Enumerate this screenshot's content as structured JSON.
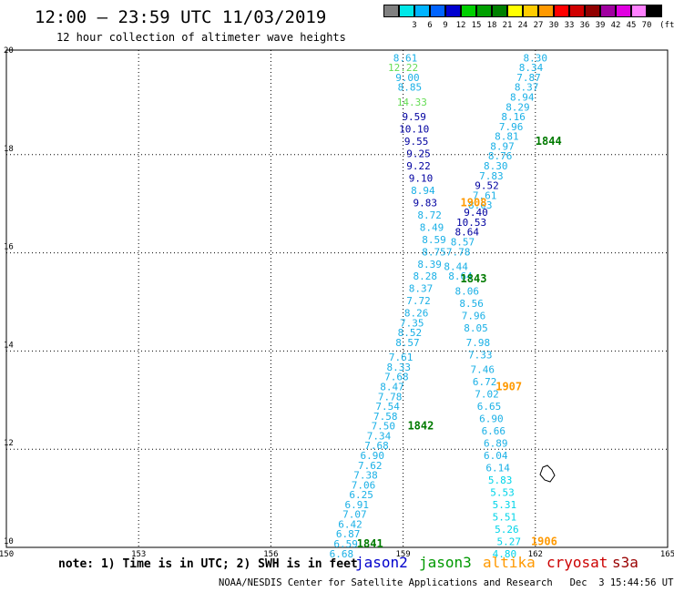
{
  "header": {
    "title": "12:00 — 23:59 UTC 11/03/2019",
    "subtitle": "12 hour collection of altimeter wave heights"
  },
  "legend": {
    "unit": "(ft)",
    "items": [
      {
        "color": "#808080",
        "label": ""
      },
      {
        "color": "#00e8e8",
        "label": "3"
      },
      {
        "color": "#00b4ff",
        "label": "6"
      },
      {
        "color": "#0064ff",
        "label": "9"
      },
      {
        "color": "#0000d0",
        "label": "12"
      },
      {
        "color": "#00d000",
        "label": "15"
      },
      {
        "color": "#00a000",
        "label": "18"
      },
      {
        "color": "#008000",
        "label": "21"
      },
      {
        "color": "#ffff00",
        "label": "24"
      },
      {
        "color": "#ffcc00",
        "label": "27"
      },
      {
        "color": "#ff9900",
        "label": "30"
      },
      {
        "color": "#ff0000",
        "label": "33"
      },
      {
        "color": "#d00000",
        "label": "36"
      },
      {
        "color": "#900000",
        "label": "39"
      },
      {
        "color": "#a000a0",
        "label": "42"
      },
      {
        "color": "#e000e0",
        "label": "45"
      },
      {
        "color": "#ff80ff",
        "label": "70"
      },
      {
        "color": "#000000",
        "label": ""
      }
    ]
  },
  "map": {
    "lon_ticks": [
      "150",
      "153",
      "156",
      "159",
      "162",
      "165"
    ],
    "lat_ticks": [
      "10",
      "12",
      "14",
      "16",
      "18",
      "20"
    ],
    "lon_range": [
      150,
      165
    ],
    "lat_range": [
      10,
      20
    ],
    "grid": "dotted",
    "colors": {
      "light_blue": "#1ab0e6",
      "dark_blue": "#0000a0",
      "light_green": "#66dd55",
      "dark_green": "#007a00",
      "orange": "#ff9900",
      "cyan": "#00d4e8"
    },
    "pass_labels": [
      {
        "text": "1844",
        "lon": 162.0,
        "lat": 18.2,
        "color": "dark_green"
      },
      {
        "text": "1908",
        "lon": 160.3,
        "lat": 16.95,
        "color": "orange"
      },
      {
        "text": "1843",
        "lon": 160.3,
        "lat": 15.4,
        "color": "dark_green"
      },
      {
        "text": "1907",
        "lon": 161.1,
        "lat": 13.2,
        "color": "orange"
      },
      {
        "text": "1842",
        "lon": 159.1,
        "lat": 12.4,
        "color": "dark_green"
      },
      {
        "text": "1841",
        "lon": 157.95,
        "lat": 10.0,
        "color": "dark_green"
      },
      {
        "text": "1906",
        "lon": 161.9,
        "lat": 10.05,
        "color": "orange"
      }
    ],
    "points": [
      {
        "t": "8.61",
        "lon": 159.05,
        "lat": 19.9,
        "c": "light_blue"
      },
      {
        "t": "12.22",
        "lon": 159.0,
        "lat": 19.7,
        "c": "light_green"
      },
      {
        "t": "9.00",
        "lon": 159.1,
        "lat": 19.5,
        "c": "light_blue"
      },
      {
        "t": "8.85",
        "lon": 159.15,
        "lat": 19.3,
        "c": "light_blue"
      },
      {
        "t": "14.33",
        "lon": 159.2,
        "lat": 19.0,
        "c": "light_green"
      },
      {
        "t": "9.59",
        "lon": 159.25,
        "lat": 18.7,
        "c": "dark_blue"
      },
      {
        "t": "10.10",
        "lon": 159.25,
        "lat": 18.45,
        "c": "dark_blue"
      },
      {
        "t": "9.55",
        "lon": 159.3,
        "lat": 18.2,
        "c": "dark_blue"
      },
      {
        "t": "9.25",
        "lon": 159.35,
        "lat": 17.95,
        "c": "dark_blue"
      },
      {
        "t": "9.22",
        "lon": 159.35,
        "lat": 17.7,
        "c": "dark_blue"
      },
      {
        "t": "9.10",
        "lon": 159.4,
        "lat": 17.45,
        "c": "dark_blue"
      },
      {
        "t": "8.94",
        "lon": 159.45,
        "lat": 17.2,
        "c": "light_blue"
      },
      {
        "t": "9.83",
        "lon": 159.5,
        "lat": 16.95,
        "c": "dark_blue"
      },
      {
        "t": "8.72",
        "lon": 159.6,
        "lat": 16.7,
        "c": "light_blue"
      },
      {
        "t": "8.49",
        "lon": 159.65,
        "lat": 16.45,
        "c": "light_blue"
      },
      {
        "t": "8.59",
        "lon": 159.7,
        "lat": 16.2,
        "c": "light_blue"
      },
      {
        "t": "8.75",
        "lon": 159.7,
        "lat": 15.95,
        "c": "light_blue"
      },
      {
        "t": "8.39",
        "lon": 159.6,
        "lat": 15.7,
        "c": "light_blue"
      },
      {
        "t": "8.28",
        "lon": 159.5,
        "lat": 15.45,
        "c": "light_blue"
      },
      {
        "t": "8.37",
        "lon": 159.4,
        "lat": 15.2,
        "c": "light_blue"
      },
      {
        "t": "7.72",
        "lon": 159.35,
        "lat": 14.95,
        "c": "light_blue"
      },
      {
        "t": "8.26",
        "lon": 159.3,
        "lat": 14.7,
        "c": "light_blue"
      },
      {
        "t": "7.35",
        "lon": 159.2,
        "lat": 14.5,
        "c": "light_blue"
      },
      {
        "t": "8.52",
        "lon": 159.15,
        "lat": 14.3,
        "c": "light_blue"
      },
      {
        "t": "8.57",
        "lon": 159.1,
        "lat": 14.1,
        "c": "light_blue"
      },
      {
        "t": "7.61",
        "lon": 158.95,
        "lat": 13.8,
        "c": "light_blue"
      },
      {
        "t": "8.33",
        "lon": 158.9,
        "lat": 13.6,
        "c": "light_blue"
      },
      {
        "t": "7.68",
        "lon": 158.85,
        "lat": 13.4,
        "c": "light_blue"
      },
      {
        "t": "8.47",
        "lon": 158.75,
        "lat": 13.2,
        "c": "light_blue"
      },
      {
        "t": "7.78",
        "lon": 158.7,
        "lat": 13.0,
        "c": "light_blue"
      },
      {
        "t": "7.54",
        "lon": 158.65,
        "lat": 12.8,
        "c": "light_blue"
      },
      {
        "t": "7.58",
        "lon": 158.6,
        "lat": 12.6,
        "c": "light_blue"
      },
      {
        "t": "7.50",
        "lon": 158.55,
        "lat": 12.4,
        "c": "light_blue"
      },
      {
        "t": "7.34",
        "lon": 158.45,
        "lat": 12.2,
        "c": "light_blue"
      },
      {
        "t": "7.68",
        "lon": 158.4,
        "lat": 12.0,
        "c": "light_blue"
      },
      {
        "t": "6.90",
        "lon": 158.3,
        "lat": 11.8,
        "c": "light_blue"
      },
      {
        "t": "7.62",
        "lon": 158.25,
        "lat": 11.6,
        "c": "light_blue"
      },
      {
        "t": "7.38",
        "lon": 158.15,
        "lat": 11.4,
        "c": "light_blue"
      },
      {
        "t": "7.06",
        "lon": 158.1,
        "lat": 11.2,
        "c": "light_blue"
      },
      {
        "t": "6.25",
        "lon": 158.05,
        "lat": 11.0,
        "c": "light_blue"
      },
      {
        "t": "6.91",
        "lon": 157.95,
        "lat": 10.8,
        "c": "light_blue"
      },
      {
        "t": "7.07",
        "lon": 157.9,
        "lat": 10.6,
        "c": "light_blue"
      },
      {
        "t": "6.42",
        "lon": 157.8,
        "lat": 10.4,
        "c": "light_blue"
      },
      {
        "t": "6.87",
        "lon": 157.75,
        "lat": 10.2,
        "c": "light_blue"
      },
      {
        "t": "6.59",
        "lon": 157.7,
        "lat": 10.0,
        "c": "light_blue"
      },
      {
        "t": "6.68",
        "lon": 157.6,
        "lat": 9.8,
        "c": "light_blue"
      },
      {
        "t": "8.30",
        "lon": 162.0,
        "lat": 19.9,
        "c": "light_blue"
      },
      {
        "t": "8.34",
        "lon": 161.9,
        "lat": 19.7,
        "c": "light_blue"
      },
      {
        "t": "7.87",
        "lon": 161.85,
        "lat": 19.5,
        "c": "light_blue"
      },
      {
        "t": "8.37",
        "lon": 161.8,
        "lat": 19.3,
        "c": "light_blue"
      },
      {
        "t": "8.94",
        "lon": 161.7,
        "lat": 19.1,
        "c": "light_blue"
      },
      {
        "t": "8.29",
        "lon": 161.6,
        "lat": 18.9,
        "c": "light_blue"
      },
      {
        "t": "8.16",
        "lon": 161.5,
        "lat": 18.7,
        "c": "light_blue"
      },
      {
        "t": "7.96",
        "lon": 161.45,
        "lat": 18.5,
        "c": "light_blue"
      },
      {
        "t": "8.81",
        "lon": 161.35,
        "lat": 18.3,
        "c": "light_blue"
      },
      {
        "t": "8.97",
        "lon": 161.25,
        "lat": 18.1,
        "c": "light_blue"
      },
      {
        "t": "8.76",
        "lon": 161.2,
        "lat": 17.9,
        "c": "light_blue"
      },
      {
        "t": "8.30",
        "lon": 161.1,
        "lat": 17.7,
        "c": "light_blue"
      },
      {
        "t": "7.83",
        "lon": 161.0,
        "lat": 17.5,
        "c": "light_blue"
      },
      {
        "t": "9.52",
        "lon": 160.9,
        "lat": 17.3,
        "c": "dark_blue"
      },
      {
        "t": "7.61",
        "lon": 160.85,
        "lat": 17.1,
        "c": "light_blue"
      },
      {
        "t": "8.03",
        "lon": 160.75,
        "lat": 16.9,
        "c": "light_blue"
      },
      {
        "t": "9.40",
        "lon": 160.65,
        "lat": 16.75,
        "c": "dark_blue"
      },
      {
        "t": "10.53",
        "lon": 160.55,
        "lat": 16.55,
        "c": "dark_blue"
      },
      {
        "t": "8.64",
        "lon": 160.45,
        "lat": 16.35,
        "c": "dark_blue"
      },
      {
        "t": "8.57",
        "lon": 160.35,
        "lat": 16.15,
        "c": "light_blue"
      },
      {
        "t": "7.78",
        "lon": 160.25,
        "lat": 15.95,
        "c": "light_blue"
      },
      {
        "t": "8.44",
        "lon": 160.2,
        "lat": 15.65,
        "c": "light_blue"
      },
      {
        "t": "8.64",
        "lon": 160.3,
        "lat": 15.45,
        "c": "light_blue"
      },
      {
        "t": "8.06",
        "lon": 160.45,
        "lat": 15.15,
        "c": "light_blue"
      },
      {
        "t": "8.56",
        "lon": 160.55,
        "lat": 14.9,
        "c": "light_blue"
      },
      {
        "t": "7.96",
        "lon": 160.6,
        "lat": 14.65,
        "c": "light_blue"
      },
      {
        "t": "8.05",
        "lon": 160.65,
        "lat": 14.4,
        "c": "light_blue"
      },
      {
        "t": "7.98",
        "lon": 160.7,
        "lat": 14.1,
        "c": "light_blue"
      },
      {
        "t": "7.33",
        "lon": 160.75,
        "lat": 13.85,
        "c": "light_blue"
      },
      {
        "t": "7.46",
        "lon": 160.8,
        "lat": 13.55,
        "c": "light_blue"
      },
      {
        "t": "6.72",
        "lon": 160.85,
        "lat": 13.3,
        "c": "light_blue"
      },
      {
        "t": "7.02",
        "lon": 160.9,
        "lat": 13.05,
        "c": "light_blue"
      },
      {
        "t": "6.65",
        "lon": 160.95,
        "lat": 12.8,
        "c": "light_blue"
      },
      {
        "t": "6.90",
        "lon": 161.0,
        "lat": 12.55,
        "c": "light_blue"
      },
      {
        "t": "6.66",
        "lon": 161.05,
        "lat": 12.3,
        "c": "light_blue"
      },
      {
        "t": "6.89",
        "lon": 161.1,
        "lat": 12.05,
        "c": "light_blue"
      },
      {
        "t": "6.04",
        "lon": 161.1,
        "lat": 11.8,
        "c": "light_blue"
      },
      {
        "t": "6.14",
        "lon": 161.15,
        "lat": 11.55,
        "c": "light_blue"
      },
      {
        "t": "5.83",
        "lon": 161.2,
        "lat": 11.3,
        "c": "cyan"
      },
      {
        "t": "5.53",
        "lon": 161.25,
        "lat": 11.05,
        "c": "cyan"
      },
      {
        "t": "5.31",
        "lon": 161.3,
        "lat": 10.8,
        "c": "cyan"
      },
      {
        "t": "5.51",
        "lon": 161.3,
        "lat": 10.55,
        "c": "cyan"
      },
      {
        "t": "5.26",
        "lon": 161.35,
        "lat": 10.3,
        "c": "cyan"
      },
      {
        "t": "5.27",
        "lon": 161.4,
        "lat": 10.05,
        "c": "cyan"
      },
      {
        "t": "4.80",
        "lon": 161.3,
        "lat": 9.8,
        "c": "cyan"
      }
    ]
  },
  "note": "note: 1) Time is in UTC; 2) SWH is in feet",
  "satellites": [
    {
      "name": "jason2",
      "color": "#0000cc"
    },
    {
      "name": "jason3",
      "color": "#009900"
    },
    {
      "name": "altika",
      "color": "#ff9900"
    },
    {
      "name": "cryosat",
      "color": "#cc0000"
    },
    {
      "name": "s3a",
      "color": "#990000"
    }
  ],
  "footer": "NOAA/NESDIS Center for Satellite Applications and Research   Dec  3 15:44:56 UTC 2019"
}
